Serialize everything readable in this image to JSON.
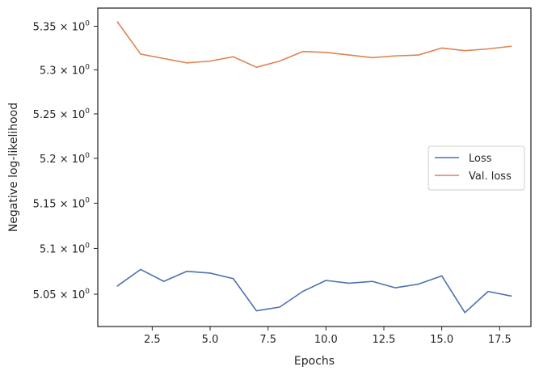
{
  "chart_data": {
    "type": "line",
    "xlabel": "Epochs",
    "ylabel": "Negative log-likelihood",
    "scale_y": "log",
    "xlim": [
      0.15,
      18.85
    ],
    "ylim": [
      5.015,
      5.371
    ],
    "x_ticks": [
      2.5,
      5.0,
      7.5,
      10.0,
      12.5,
      15.0,
      17.5
    ],
    "x_tick_labels": [
      "2.5",
      "5.0",
      "7.5",
      "10.0",
      "12.5",
      "15.0",
      "17.5"
    ],
    "y_ticks": [
      5.05,
      5.1,
      5.15,
      5.2,
      5.25,
      5.3,
      5.35
    ],
    "y_tick_mantissas": [
      "5.05",
      "5.1",
      "5.15",
      "5.2",
      "5.25",
      "5.3",
      "5.35"
    ],
    "y_tick_suffix": "× 10",
    "y_tick_exponent": "0",
    "grid": false,
    "legend_position": "center-right",
    "x": [
      1,
      2,
      3,
      4,
      5,
      6,
      7,
      8,
      9,
      10,
      11,
      12,
      13,
      14,
      15,
      16,
      17,
      18
    ],
    "series": [
      {
        "name": "Loss",
        "color": "#4c72b0",
        "values": [
          5.059,
          5.077,
          5.064,
          5.075,
          5.073,
          5.067,
          5.032,
          5.036,
          5.053,
          5.065,
          5.062,
          5.064,
          5.057,
          5.061,
          5.07,
          5.03,
          5.053,
          5.048
        ]
      },
      {
        "name": "Val. loss",
        "color": "#dd8452",
        "values": [
          5.355,
          5.318,
          5.313,
          5.308,
          5.31,
          5.315,
          5.303,
          5.31,
          5.321,
          5.32,
          5.317,
          5.314,
          5.316,
          5.317,
          5.325,
          5.322,
          5.324,
          5.327
        ]
      }
    ]
  }
}
